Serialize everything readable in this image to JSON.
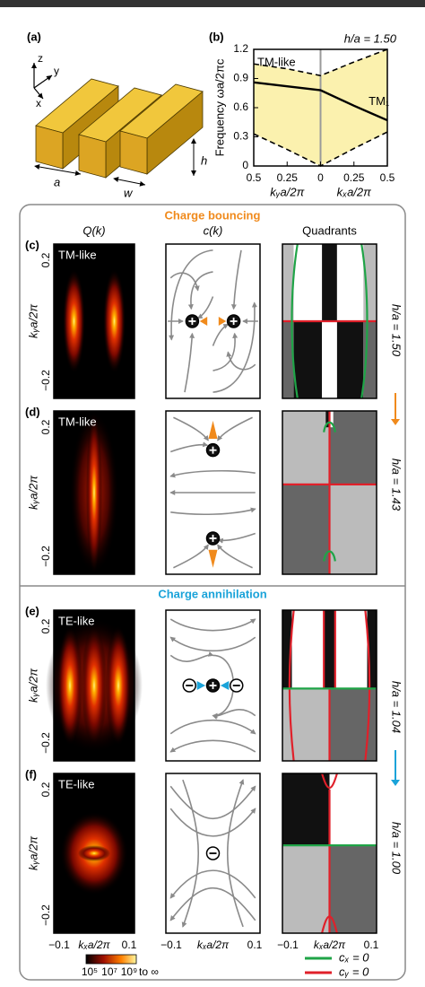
{
  "panel_a": {
    "label": "(a)",
    "axis_labels": [
      "z",
      "y",
      "x"
    ],
    "dimension_labels": [
      "a",
      "w",
      "h"
    ]
  },
  "chart_data": {
    "type": "line",
    "label": "(b)",
    "title": "h/a = 1.50",
    "y_label": "Frequency ωa/2πc",
    "x_labels": [
      "kᵧa/2π",
      "kₓa/2π"
    ],
    "x": [
      -0.5,
      -0.25,
      0,
      0.25,
      0.5
    ],
    "series": [
      {
        "name": "TM₁",
        "color": "#000000",
        "style": "solid",
        "values": [
          0.86,
          0.82,
          0.78,
          0.62,
          0.47
        ]
      },
      {
        "color": "#000000",
        "style": "dashed",
        "values": [
          1.05,
          1.0,
          0.93,
          1.07,
          1.2
        ]
      },
      {
        "color": "#000000",
        "style": "dashed",
        "values": [
          0.33,
          0.17,
          0,
          0.18,
          0.35
        ]
      }
    ],
    "annotations": [
      "TM-like"
    ],
    "area_color": "#fbf1ae",
    "xlim": [
      -0.5,
      0.5
    ],
    "xticks": [
      {
        "value": -0.5,
        "label": "0.5"
      },
      {
        "value": -0.25,
        "label": "0.25"
      },
      0,
      {
        "value": 0.25,
        "label": "0.25"
      },
      0.5
    ],
    "ylim": [
      0,
      1.2
    ],
    "yticks": [
      0,
      0.3,
      0.6,
      0.9,
      1.2
    ]
  },
  "figure": {
    "headings": [
      "Charge bouncing",
      "Charge annihilation"
    ],
    "columns": [
      "Q(k)",
      "c(k)",
      "Quadrants"
    ],
    "panels": [
      {
        "label": "(c)",
        "mode": "TM-like"
      },
      {
        "label": "(d)",
        "mode": "TM-like"
      },
      {
        "label": "(e)",
        "mode": "TE-like"
      },
      {
        "label": "(f)",
        "mode": "TE-like"
      }
    ],
    "y_ticks": [
      "0.2",
      "−0.2"
    ],
    "y_label": "kᵧa/2π",
    "x_ticks": [
      "−0.1",
      "kₓa/2π",
      "0.1"
    ],
    "ratios": [
      "h/a = 1.50",
      "h/a = 1.43",
      "h/a = 1.04",
      "h/a = 1.00"
    ],
    "colorbar": [
      "10⁵",
      "10⁷",
      "10⁹",
      "to ∞"
    ],
    "legend": [
      "cₓ = 0",
      "cᵧ = 0"
    ]
  }
}
